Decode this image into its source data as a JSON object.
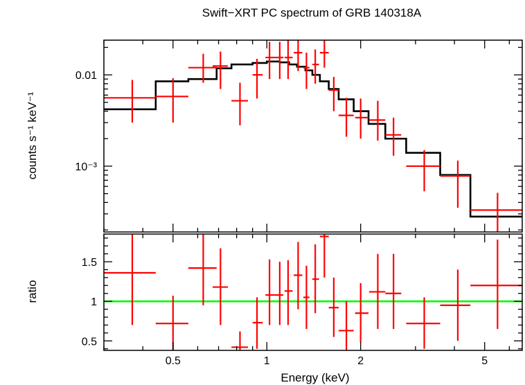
{
  "chart_data": {
    "type": "scatter",
    "title": "Swift−XRT PC spectrum of GRB 140318A",
    "xlabel": "Energy (keV)",
    "xscale": "log",
    "xlim": [
      0.3,
      6.6
    ],
    "x_ticks": [
      {
        "value": 0.5,
        "label": "0.5"
      },
      {
        "value": 1,
        "label": "1"
      },
      {
        "value": 2,
        "label": "2"
      },
      {
        "value": 5,
        "label": "5"
      }
    ],
    "panels": [
      {
        "name": "spectrum",
        "ylabel": "counts s⁻¹ keV⁻¹",
        "yscale": "log",
        "ylim": [
          0.00019,
          0.024
        ],
        "y_ticks": [
          {
            "value": 0.01,
            "label": "0.01"
          },
          {
            "value": 0.001,
            "label": "10⁻³"
          }
        ],
        "data": [
          {
            "x": 0.37,
            "xlo": 0.3,
            "xhi": 0.44,
            "y": 0.0056,
            "ylo": 0.003,
            "yhi": 0.0088
          },
          {
            "x": 0.5,
            "xlo": 0.44,
            "xhi": 0.56,
            "y": 0.0058,
            "ylo": 0.003,
            "yhi": 0.0092
          },
          {
            "x": 0.625,
            "xlo": 0.56,
            "xhi": 0.69,
            "y": 0.012,
            "ylo": 0.0082,
            "yhi": 0.017
          },
          {
            "x": 0.71,
            "xlo": 0.67,
            "xhi": 0.75,
            "y": 0.0125,
            "ylo": 0.007,
            "yhi": 0.018
          },
          {
            "x": 0.82,
            "xlo": 0.77,
            "xhi": 0.87,
            "y": 0.0052,
            "ylo": 0.0028,
            "yhi": 0.0082
          },
          {
            "x": 0.93,
            "xlo": 0.9,
            "xhi": 0.97,
            "y": 0.01,
            "ylo": 0.0055,
            "yhi": 0.015
          },
          {
            "x": 1.02,
            "xlo": 0.99,
            "xhi": 1.06,
            "y": 0.0155,
            "ylo": 0.009,
            "yhi": 0.023
          },
          {
            "x": 1.1,
            "xlo": 1.06,
            "xhi": 1.13,
            "y": 0.0155,
            "ylo": 0.009,
            "yhi": 0.023
          },
          {
            "x": 1.17,
            "xlo": 1.14,
            "xhi": 1.21,
            "y": 0.0155,
            "ylo": 0.009,
            "yhi": 0.024
          },
          {
            "x": 1.26,
            "xlo": 1.22,
            "xhi": 1.3,
            "y": 0.0175,
            "ylo": 0.011,
            "yhi": 0.024
          },
          {
            "x": 1.34,
            "xlo": 1.31,
            "xhi": 1.37,
            "y": 0.012,
            "ylo": 0.007,
            "yhi": 0.0175
          },
          {
            "x": 1.43,
            "xlo": 1.4,
            "xhi": 1.47,
            "y": 0.013,
            "ylo": 0.008,
            "yhi": 0.019
          },
          {
            "x": 1.53,
            "xlo": 1.48,
            "xhi": 1.58,
            "y": 0.0175,
            "ylo": 0.012,
            "yhi": 0.024
          },
          {
            "x": 1.64,
            "xlo": 1.58,
            "xhi": 1.7,
            "y": 0.0068,
            "ylo": 0.004,
            "yhi": 0.0095
          },
          {
            "x": 1.8,
            "xlo": 1.7,
            "xhi": 1.9,
            "y": 0.0036,
            "ylo": 0.0021,
            "yhi": 0.0056
          },
          {
            "x": 2.0,
            "xlo": 1.92,
            "xhi": 2.12,
            "y": 0.0034,
            "ylo": 0.002,
            "yhi": 0.0055
          },
          {
            "x": 2.27,
            "xlo": 2.13,
            "xhi": 2.4,
            "y": 0.0032,
            "ylo": 0.0019,
            "yhi": 0.0052
          },
          {
            "x": 2.55,
            "xlo": 2.4,
            "xhi": 2.7,
            "y": 0.0022,
            "ylo": 0.0013,
            "yhi": 0.0034
          },
          {
            "x": 3.2,
            "xlo": 2.8,
            "xhi": 3.6,
            "y": 0.001,
            "ylo": 0.00053,
            "yhi": 0.0015
          },
          {
            "x": 4.1,
            "xlo": 3.6,
            "xhi": 4.5,
            "y": 0.00078,
            "ylo": 0.00035,
            "yhi": 0.00115
          },
          {
            "x": 5.5,
            "xlo": 4.5,
            "xhi": 6.6,
            "y": 0.00033,
            "ylo": 0.00019,
            "yhi": 0.00051
          }
        ],
        "model": [
          {
            "x0": 0.3,
            "x1": 0.44,
            "y": 0.0042
          },
          {
            "x0": 0.44,
            "x1": 0.56,
            "y": 0.0085
          },
          {
            "x0": 0.56,
            "x1": 0.69,
            "y": 0.009
          },
          {
            "x0": 0.69,
            "x1": 0.77,
            "y": 0.0118
          },
          {
            "x0": 0.77,
            "x1": 0.9,
            "y": 0.013
          },
          {
            "x0": 0.9,
            "x1": 1.0,
            "y": 0.0135
          },
          {
            "x0": 1.0,
            "x1": 1.1,
            "y": 0.014
          },
          {
            "x0": 1.1,
            "x1": 1.18,
            "y": 0.0137
          },
          {
            "x0": 1.18,
            "x1": 1.25,
            "y": 0.013
          },
          {
            "x0": 1.25,
            "x1": 1.33,
            "y": 0.0123
          },
          {
            "x0": 1.33,
            "x1": 1.4,
            "y": 0.0112
          },
          {
            "x0": 1.4,
            "x1": 1.48,
            "y": 0.01
          },
          {
            "x0": 1.48,
            "x1": 1.58,
            "y": 0.0085
          },
          {
            "x0": 1.58,
            "x1": 1.7,
            "y": 0.007
          },
          {
            "x0": 1.7,
            "x1": 1.9,
            "y": 0.0054
          },
          {
            "x0": 1.9,
            "x1": 2.12,
            "y": 0.004
          },
          {
            "x0": 2.12,
            "x1": 2.4,
            "y": 0.0029
          },
          {
            "x0": 2.4,
            "x1": 2.8,
            "y": 0.002
          },
          {
            "x0": 2.8,
            "x1": 3.6,
            "y": 0.0014
          },
          {
            "x0": 3.6,
            "x1": 4.5,
            "y": 0.0008
          },
          {
            "x0": 4.5,
            "x1": 6.6,
            "y": 0.00028
          }
        ]
      },
      {
        "name": "ratio",
        "ylabel": "ratio",
        "yscale": "linear",
        "ylim": [
          0.38,
          1.85
        ],
        "y_ticks": [
          {
            "value": 0.5,
            "label": "0.5"
          },
          {
            "value": 1,
            "label": "1"
          },
          {
            "value": 1.5,
            "label": "1.5"
          }
        ],
        "reference_line": 1,
        "data": [
          {
            "x": 0.37,
            "xlo": 0.3,
            "xhi": 0.44,
            "y": 1.36,
            "ylo": 0.7,
            "yhi": 1.85
          },
          {
            "x": 0.5,
            "xlo": 0.44,
            "xhi": 0.56,
            "y": 0.72,
            "ylo": 0.38,
            "yhi": 1.07
          },
          {
            "x": 0.625,
            "xlo": 0.56,
            "xhi": 0.69,
            "y": 1.42,
            "ylo": 0.95,
            "yhi": 1.85
          },
          {
            "x": 0.71,
            "xlo": 0.67,
            "xhi": 0.75,
            "y": 1.18,
            "ylo": 0.7,
            "yhi": 1.67
          },
          {
            "x": 0.82,
            "xlo": 0.77,
            "xhi": 0.87,
            "y": 0.42,
            "ylo": 0.38,
            "yhi": 0.62
          },
          {
            "x": 0.93,
            "xlo": 0.9,
            "xhi": 0.97,
            "y": 0.73,
            "ylo": 0.4,
            "yhi": 1.05
          },
          {
            "x": 1.02,
            "xlo": 0.99,
            "xhi": 1.06,
            "y": 1.08,
            "ylo": 0.7,
            "yhi": 1.53
          },
          {
            "x": 1.1,
            "xlo": 1.06,
            "xhi": 1.13,
            "y": 1.08,
            "ylo": 0.7,
            "yhi": 1.5
          },
          {
            "x": 1.17,
            "xlo": 1.14,
            "xhi": 1.21,
            "y": 1.13,
            "ylo": 0.7,
            "yhi": 1.52
          },
          {
            "x": 1.26,
            "xlo": 1.22,
            "xhi": 1.3,
            "y": 1.33,
            "ylo": 0.9,
            "yhi": 1.75
          },
          {
            "x": 1.34,
            "xlo": 1.31,
            "xhi": 1.37,
            "y": 1.05,
            "ylo": 0.65,
            "yhi": 1.45
          },
          {
            "x": 1.43,
            "xlo": 1.4,
            "xhi": 1.47,
            "y": 1.28,
            "ylo": 0.85,
            "yhi": 1.72
          },
          {
            "x": 1.53,
            "xlo": 1.48,
            "xhi": 1.58,
            "y": 1.82,
            "ylo": 1.3,
            "yhi": 1.85
          },
          {
            "x": 1.64,
            "xlo": 1.58,
            "xhi": 1.7,
            "y": 0.92,
            "ylo": 0.55,
            "yhi": 1.3
          },
          {
            "x": 1.8,
            "xlo": 1.7,
            "xhi": 1.9,
            "y": 0.63,
            "ylo": 0.38,
            "yhi": 1.0
          },
          {
            "x": 2.0,
            "xlo": 1.92,
            "xhi": 2.12,
            "y": 0.85,
            "ylo": 0.48,
            "yhi": 1.23
          },
          {
            "x": 2.27,
            "xlo": 2.13,
            "xhi": 2.4,
            "y": 1.12,
            "ylo": 0.65,
            "yhi": 1.6
          },
          {
            "x": 2.55,
            "xlo": 2.4,
            "xhi": 2.7,
            "y": 1.1,
            "ylo": 0.65,
            "yhi": 1.6
          },
          {
            "x": 3.2,
            "xlo": 2.8,
            "xhi": 3.6,
            "y": 0.72,
            "ylo": 0.4,
            "yhi": 1.05
          },
          {
            "x": 4.1,
            "xlo": 3.6,
            "xhi": 4.5,
            "y": 0.95,
            "ylo": 0.5,
            "yhi": 1.4
          },
          {
            "x": 5.5,
            "xlo": 4.5,
            "xhi": 6.6,
            "y": 1.2,
            "ylo": 0.65,
            "yhi": 1.78
          }
        ]
      }
    ],
    "colors": {
      "data": "#ff0000",
      "model": "#000000",
      "reference": "#00ff00",
      "axes": "#000000"
    },
    "grid": false,
    "legend": "none"
  }
}
